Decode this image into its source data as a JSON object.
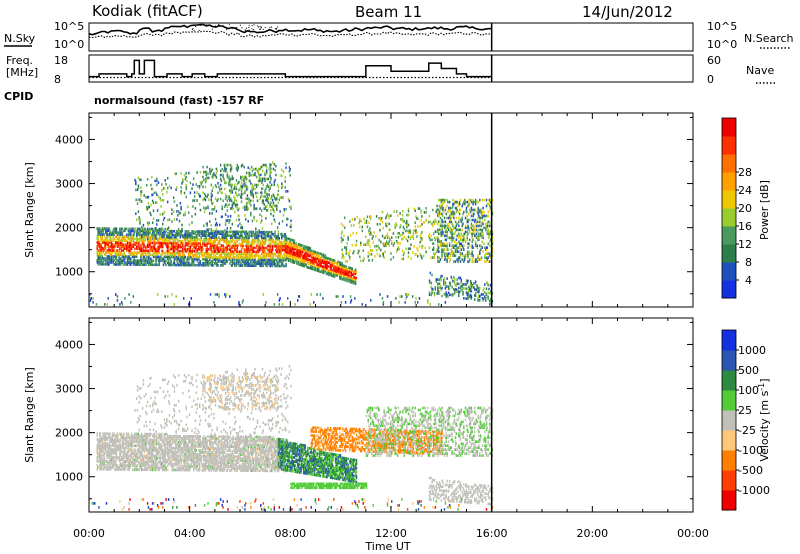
{
  "header": {
    "station": "Kodiak (fitACF)",
    "beam": "Beam 11",
    "date": "14/Jun/2012"
  },
  "params": {
    "nsky_label": "N.Sky",
    "nsky_tick_top": "10^5",
    "nsky_tick_bottom": "10^0",
    "nsearch_label": "N.Search",
    "nsearch_tick_top": "10^5",
    "nsearch_tick_bottom": "10^0",
    "freq_label_1": "Freq.",
    "freq_label_2": "[MHz]",
    "freq_tick_top": "18",
    "freq_tick_bottom": "8",
    "nave_label": "Nave",
    "nave_tick_top": "60",
    "nave_tick_bottom": "0",
    "cpid_label": "CPID",
    "cpid_text": "normalsound (fast) -157 RF"
  },
  "chart_data": [
    {
      "type": "heatmap",
      "panel": "power",
      "ylabel": "Slant Range [km]",
      "xlabel": "Time UT",
      "x_ticks": [
        "00:00",
        "04:00",
        "08:00",
        "12:00",
        "16:00",
        "20:00",
        "00:00"
      ],
      "y_ticks": [
        1000,
        2000,
        3000,
        4000
      ],
      "ylim": [
        200,
        4600
      ],
      "data_end_time_hr": 16,
      "colorbar": {
        "label": "Power [dB]",
        "ticks": [
          4,
          8,
          12,
          16,
          20,
          24,
          28
        ],
        "colors": [
          "#1530e0",
          "#2050c0",
          "#2e7e4a",
          "#4a9a60",
          "#9acc30",
          "#f0c800",
          "#ffa000",
          "#ff7000",
          "#ff3000",
          "#ee0000"
        ]
      },
      "features": [
        {
          "name": "main echo band",
          "t_start": 0.3,
          "t_end": 7.8,
          "range_center_km": 1500,
          "power_db": 26
        },
        {
          "name": "descending echo",
          "t_start": 7.8,
          "t_end": 10.6,
          "range_start_km": 1450,
          "range_end_km": 850,
          "power_db": 28
        },
        {
          "name": "far range scatter",
          "t_start": 4.5,
          "t_end": 8.0,
          "range_center_km": 2800,
          "power_db": 10
        },
        {
          "name": "late band",
          "t_start": 11.0,
          "t_end": 16.0,
          "range_center_km": 1800,
          "power_db": 12
        }
      ]
    },
    {
      "type": "heatmap",
      "panel": "velocity",
      "ylabel": "Slant Range [km]",
      "xlabel": "Time UT",
      "x_ticks": [
        "00:00",
        "04:00",
        "08:00",
        "12:00",
        "16:00",
        "20:00",
        "00:00"
      ],
      "y_ticks": [
        1000,
        2000,
        3000,
        4000
      ],
      "ylim": [
        200,
        4600
      ],
      "data_end_time_hr": 16,
      "colorbar": {
        "label": "Velocity [m s^-1]",
        "ticks": [
          "1000",
          "500",
          "100",
          "25",
          "-25",
          "-100",
          "-500",
          "-1000"
        ],
        "colors": [
          "#1530e0",
          "#2a56b0",
          "#2e8a40",
          "#52cc38",
          "#c0c0b8",
          "#ffc878",
          "#ff8000",
          "#ff4000",
          "#ee0000"
        ]
      },
      "features": [
        {
          "name": "ground scatter band",
          "t_start": 0.3,
          "t_end": 7.8,
          "range_center_km": 1500,
          "velocity": 0
        },
        {
          "name": "positive velocity patch",
          "t_start": 7.5,
          "t_end": 10.5,
          "range_center_km": 1250,
          "velocity": 300
        },
        {
          "name": "negative velocity patch",
          "t_start": 8.8,
          "t_end": 14.0,
          "range_center_km": 1800,
          "velocity": -400
        }
      ]
    }
  ],
  "timeseries": {
    "nsky": [
      3.0,
      3.4,
      3.5,
      3.2,
      3.9,
      3.6,
      4.2,
      4.4,
      4.7,
      4.5,
      4.3,
      4.0,
      3.5,
      3.4,
      3.6,
      3.8,
      3.7,
      3.8,
      3.6,
      3.5,
      3.7,
      3.9,
      4.1,
      4.2,
      4.0,
      3.9,
      4.0,
      4.1,
      4.0,
      4.2,
      4.1,
      3.9
    ],
    "nsearch": [
      2.4,
      2.6,
      2.7,
      2.6,
      2.9,
      2.8,
      3.2,
      3.4,
      3.6,
      3.4,
      3.3,
      3.0,
      2.7,
      2.6,
      2.8,
      3.0,
      2.9,
      3.0,
      2.8,
      2.7,
      2.9,
      3.0,
      3.1,
      3.2,
      3.0,
      2.9,
      3.0,
      3.1,
      3.0,
      3.2,
      3.1,
      2.9
    ],
    "freq_steps": [
      [
        0,
        10
      ],
      [
        0.4,
        11
      ],
      [
        1.5,
        10
      ],
      [
        1.7,
        11
      ],
      [
        1.8,
        16
      ],
      [
        2.0,
        11
      ],
      [
        2.2,
        16
      ],
      [
        2.6,
        10
      ],
      [
        3.1,
        11
      ],
      [
        3.7,
        10
      ],
      [
        4.1,
        11
      ],
      [
        4.6,
        10
      ],
      [
        5.1,
        11
      ],
      [
        6.0,
        11
      ],
      [
        6.5,
        11
      ],
      [
        7.2,
        11
      ],
      [
        7.8,
        10
      ],
      [
        8.0,
        10
      ],
      [
        10.0,
        10
      ],
      [
        11.0,
        14
      ],
      [
        12.0,
        12
      ],
      [
        13.0,
        12
      ],
      [
        13.5,
        15
      ],
      [
        14.0,
        13
      ],
      [
        14.6,
        11
      ],
      [
        15.0,
        10
      ],
      [
        16.0,
        10
      ]
    ],
    "nave": 10
  }
}
